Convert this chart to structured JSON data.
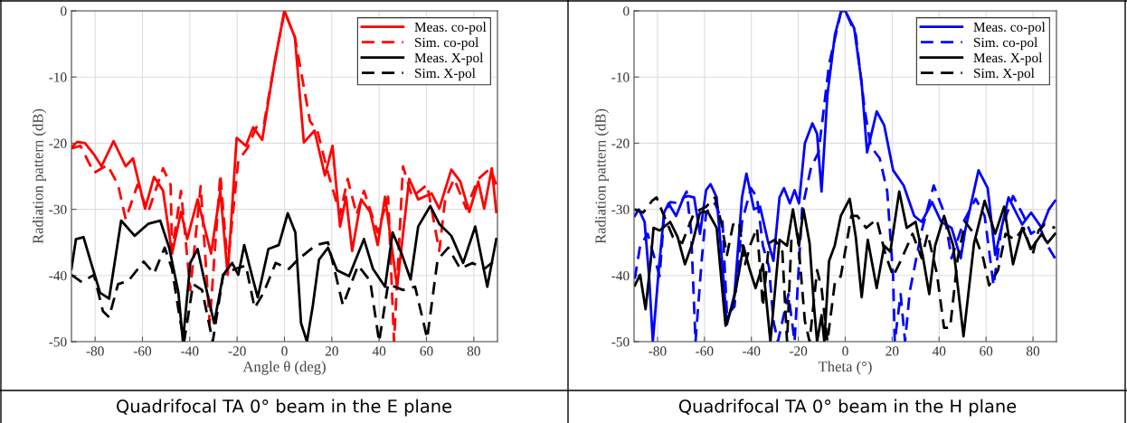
{
  "chart_data": [
    {
      "type": "line",
      "xlabel": "Angle θ (deg)",
      "ylabel": "Radiation pattern (dB)",
      "xlim": [
        -90,
        90
      ],
      "ylim": [
        -50,
        0
      ],
      "xticks": [
        -80,
        -60,
        -40,
        -20,
        0,
        20,
        40,
        60,
        80
      ],
      "yticks": [
        -50,
        -40,
        -30,
        -20,
        -10,
        0
      ],
      "grid": true,
      "legend": "top right",
      "annotations": [
        "Quadrifocal TA 0° beam in the E plane"
      ],
      "series": [
        {
          "name": "Meas. co-pol",
          "color": "#ff0000",
          "line_style": "solid",
          "x": [
            -90,
            -87.5,
            -84.3,
            -80.5,
            -77.3,
            -72.2,
            -67.1,
            -64,
            -58.9,
            -55.1,
            -51.3,
            -47.5,
            -43.7,
            -41.1,
            -36.7,
            -31,
            -27.1,
            -24,
            -20.2,
            -16.3,
            -13.2,
            -9.4,
            -4.3,
            0,
            4.4,
            8.2,
            12.7,
            17.1,
            20.3,
            23.5,
            26,
            28.6,
            32.4,
            36.2,
            39.4,
            42.5,
            47.6,
            52.7,
            56.5,
            62.2,
            65.4,
            70.5,
            74.3,
            78.1,
            81.9,
            84.4,
            87.6,
            89.5
          ],
          "values": [
            -20.6,
            -19.8,
            -20,
            -21.7,
            -23.5,
            -19.7,
            -23.5,
            -22.3,
            -29.9,
            -25.1,
            -27.2,
            -36.7,
            -30.4,
            -34.5,
            -28.5,
            -36.7,
            -27.2,
            -39.9,
            -19.2,
            -20.4,
            -17.6,
            -19.5,
            -8.1,
            0,
            -4,
            -19.9,
            -18.1,
            -24.9,
            -20.4,
            -32.6,
            -28.1,
            -36.3,
            -28.5,
            -30.4,
            -35.4,
            -28.1,
            -41.7,
            -25.4,
            -28.5,
            -27.6,
            -29.9,
            -24,
            -25.8,
            -30.4,
            -25.8,
            -29.9,
            -23.8,
            -30.4
          ]
        },
        {
          "name": "Sim. co-pol",
          "color": "#ff0000",
          "line_style": "dashed",
          "x": [
            -90,
            -86.2,
            -80.5,
            -74.8,
            -70.3,
            -67.1,
            -62.1,
            -57.6,
            -51.3,
            -48.1,
            -47.5,
            -43.7,
            -39.8,
            -35.4,
            -31.6,
            -27.1,
            -24,
            -19.5,
            -15.7,
            -11.9,
            -8.7,
            -4.3,
            0,
            4.4,
            10.8,
            13.9,
            18.4,
            23.5,
            26.7,
            30.5,
            33.6,
            39.4,
            43.8,
            46.3,
            50.1,
            53.9,
            60.3,
            65.4,
            67.9,
            71.7,
            76.8,
            81.9,
            87,
            89.5
          ],
          "values": [
            -20.8,
            -20.4,
            -24.5,
            -23.3,
            -26.3,
            -31.5,
            -26.3,
            -30.4,
            -23.8,
            -26.3,
            -36.3,
            -27.2,
            -42.2,
            -26.5,
            -47.2,
            -24.7,
            -38.5,
            -22.6,
            -20.8,
            -17.6,
            -17.2,
            -8.1,
            0,
            -4,
            -16.7,
            -18.1,
            -24.5,
            -30.8,
            -25.4,
            -30.8,
            -27.2,
            -33.5,
            -28.1,
            -50,
            -23.5,
            -28.1,
            -26.3,
            -36.3,
            -28.5,
            -25.4,
            -29.9,
            -25.4,
            -23.8,
            -26.3
          ]
        },
        {
          "name": "Meas. X-pol",
          "color": "#000000",
          "line_style": "solid",
          "x": [
            -90,
            -88.1,
            -84.9,
            -81.7,
            -77.9,
            -74.1,
            -69,
            -63.3,
            -57.6,
            -52.5,
            -48.7,
            -44.8,
            -42.9,
            -39.8,
            -36.7,
            -33.5,
            -29.7,
            -25.9,
            -22.1,
            -19.5,
            -17,
            -13.8,
            -11.3,
            -6.8,
            -2.4,
            1.4,
            4.6,
            7,
            9.5,
            12,
            14.6,
            18.4,
            22.2,
            27.3,
            33.6,
            37.4,
            42.5,
            45.7,
            49.5,
            53.3,
            56.5,
            61.6,
            65.4,
            70.5,
            75.5,
            80.6,
            85.7,
            89.5
          ],
          "values": [
            -39,
            -34.5,
            -34.2,
            -38.1,
            -42.6,
            -43.5,
            -31.7,
            -34,
            -32.2,
            -31.7,
            -35.8,
            -42.6,
            -50,
            -38.1,
            -36,
            -41.3,
            -47.2,
            -39.9,
            -38.1,
            -39.9,
            -35.4,
            -39.9,
            -43.3,
            -36,
            -35.4,
            -30.6,
            -33.5,
            -47.2,
            -50,
            -44.5,
            -37.6,
            -35.8,
            -39.2,
            -40.1,
            -34.5,
            -39,
            -41.7,
            -33.5,
            -36.7,
            -40.6,
            -32.6,
            -29.5,
            -32.2,
            -34,
            -38.1,
            -32.6,
            -41.7,
            -34.5
          ]
        },
        {
          "name": "Sim. X-pol",
          "color": "#000000",
          "line_style": "dashed",
          "x": [
            -90,
            -85.6,
            -80.5,
            -76.7,
            -74.1,
            -70.3,
            -65.9,
            -59.5,
            -55.1,
            -50.6,
            -47.5,
            -44.3,
            -42.4,
            -38.6,
            -34.8,
            -30.3,
            -25.9,
            -20.8,
            -16.3,
            -12.6,
            -8.8,
            -3.7,
            1.9,
            5.7,
            13.3,
            18.4,
            24.7,
            31.1,
            36.2,
            40,
            43.8,
            50.1,
            55.2,
            60.3,
            64.7,
            69.2,
            74.3,
            79.4,
            84.4,
            89.5
          ],
          "values": [
            -39.9,
            -41,
            -39.9,
            -45.4,
            -46.3,
            -41.3,
            -40.8,
            -37.9,
            -39.7,
            -35.8,
            -39,
            -46.3,
            -50,
            -41.3,
            -42.2,
            -50,
            -39.9,
            -39,
            -38.5,
            -44.9,
            -42.6,
            -38.1,
            -39,
            -37.6,
            -35.4,
            -35,
            -44.5,
            -38.5,
            -40.8,
            -50,
            -41.3,
            -42.2,
            -41.7,
            -49.5,
            -37.6,
            -35.8,
            -39,
            -38.1,
            -39,
            -37.6
          ]
        }
      ]
    },
    {
      "type": "line",
      "xlabel": "Theta (°)",
      "ylabel": "Radiation pattern (dB)",
      "xlim": [
        -90,
        90
      ],
      "ylim": [
        -50,
        0
      ],
      "xticks": [
        -80,
        -60,
        -40,
        -20,
        0,
        20,
        40,
        60,
        80
      ],
      "yticks": [
        -50,
        -40,
        -30,
        -20,
        -10,
        0
      ],
      "grid": true,
      "legend": "top right",
      "annotations": [
        "Quadrifocal TA 0° beam in the H plane"
      ],
      "series": [
        {
          "name": "Meas. co-pol",
          "color": "#0000ff",
          "line_style": "solid",
          "x": [
            -89.7,
            -88,
            -85.5,
            -83.6,
            -82,
            -79.7,
            -77.2,
            -75.3,
            -72.1,
            -68.9,
            -67,
            -64.4,
            -61.9,
            -59.3,
            -57.4,
            -54.8,
            -52.3,
            -50.4,
            -47.2,
            -44,
            -42.1,
            -38.9,
            -36.3,
            -33.1,
            -30.6,
            -28,
            -26.1,
            -23.6,
            -21.6,
            -19.7,
            -17.2,
            -14,
            -12,
            -10.1,
            -7.6,
            -4.4,
            -1.8,
            0,
            3.8,
            7,
            9.3,
            13.4,
            16.6,
            20.4,
            24.9,
            29.4,
            32.6,
            37,
            40.9,
            45.3,
            49.2,
            51.1,
            56.8,
            60.7,
            63.9,
            69.6,
            72.8,
            75.4,
            79.2,
            83.7,
            86.8,
            89.4
          ],
          "values": [
            -31,
            -30,
            -31.9,
            -40.1,
            -50,
            -40.1,
            -30.5,
            -29.1,
            -31,
            -28.2,
            -28,
            -28.2,
            -33.7,
            -27.1,
            -26.2,
            -28.2,
            -38.7,
            -47.4,
            -42.8,
            -28.2,
            -24.6,
            -30,
            -29.6,
            -34.6,
            -37.8,
            -28.2,
            -26.8,
            -29.1,
            -27.1,
            -29.1,
            -20,
            -17,
            -18.6,
            -27.3,
            -12.7,
            -3.6,
            -0.1,
            0,
            -2.6,
            -10.9,
            -21.4,
            -15.2,
            -17.3,
            -24.1,
            -26.4,
            -31,
            -31.9,
            -28.9,
            -31.9,
            -32.8,
            -37.4,
            -33.2,
            -24.1,
            -26.8,
            -36.9,
            -28.2,
            -30.5,
            -32.3,
            -30.5,
            -32.8,
            -30,
            -28.7
          ]
        },
        {
          "name": "Sim. co-pol",
          "color": "#0000ff",
          "line_style": "dashed",
          "x": [
            -89.7,
            -87.4,
            -84.2,
            -79.1,
            -77.2,
            -74.6,
            -70.2,
            -67.6,
            -65.7,
            -63.8,
            -61.2,
            -59.3,
            -55.5,
            -52.3,
            -50.4,
            -47.2,
            -44,
            -40.2,
            -37.6,
            -35.1,
            -32.5,
            -30.6,
            -28.7,
            -24.2,
            -21.6,
            -18.4,
            -14.6,
            -11.4,
            -9.5,
            -6.9,
            -1.8,
            0,
            4.5,
            8.3,
            10.9,
            14.7,
            17.9,
            20.4,
            21.1,
            23.6,
            25.5,
            27.5,
            32.6,
            37.7,
            42.1,
            45.3,
            50.4,
            55.6,
            59.4,
            63.2,
            66.4,
            71.5,
            76,
            79.2,
            83,
            86.2,
            89.4
          ],
          "values": [
            -40.5,
            -35.5,
            -33.7,
            -40.1,
            -31,
            -28.9,
            -29.1,
            -27.3,
            -33.2,
            -50,
            -37.8,
            -30.5,
            -29.1,
            -31.9,
            -46,
            -44.7,
            -31.9,
            -26.8,
            -28.2,
            -35.5,
            -38.7,
            -46.9,
            -50,
            -42.8,
            -50,
            -30,
            -23.7,
            -21.4,
            -15.9,
            -8.1,
            -0.1,
            0,
            -3.6,
            -15,
            -20.5,
            -22.3,
            -27.3,
            -40.1,
            -50,
            -42.8,
            -50,
            -42.4,
            -33.2,
            -26.4,
            -30.5,
            -37.4,
            -31.9,
            -28.4,
            -31,
            -41.5,
            -33.2,
            -28,
            -31,
            -33.7,
            -32.8,
            -35.5,
            -37.4
          ]
        },
        {
          "name": "Meas. X-pol",
          "color": "#000000",
          "line_style": "solid",
          "x": [
            -89.7,
            -87.4,
            -85.1,
            -82.9,
            -81.7,
            -79.1,
            -74.6,
            -71.4,
            -68.3,
            -65.1,
            -61.9,
            -58.7,
            -54.8,
            -51,
            -47.8,
            -45.3,
            -43.4,
            -40.8,
            -38.2,
            -35.1,
            -31.9,
            -28,
            -24.8,
            -22.3,
            -19.7,
            -17.8,
            -15.2,
            -13.3,
            -12,
            -10.1,
            -8.9,
            -6.9,
            -4.5,
            -1.9,
            1.9,
            4.5,
            7,
            9.6,
            13.4,
            16.6,
            19.2,
            23,
            26.2,
            30,
            33.2,
            35.8,
            38.3,
            42.1,
            46,
            50.4,
            54.9,
            59.4,
            63.9,
            67.7,
            71.5,
            75.4,
            79.2,
            83.7,
            86.2,
            89.4
          ],
          "values": [
            -41.5,
            -39.9,
            -45.1,
            -37.8,
            -32.8,
            -33.2,
            -31.9,
            -34.2,
            -38.3,
            -35.1,
            -30.5,
            -30.3,
            -32.8,
            -47.6,
            -44.2,
            -39.6,
            -35.5,
            -39,
            -41.9,
            -38.3,
            -50,
            -34.6,
            -35.5,
            -30,
            -35.5,
            -30,
            -35.1,
            -44.7,
            -50,
            -46,
            -50,
            -37.8,
            -35.5,
            -31,
            -28.4,
            -34.2,
            -43.3,
            -34.6,
            -41.9,
            -35.5,
            -36.4,
            -27.3,
            -32.8,
            -31.9,
            -37.4,
            -42.8,
            -35.5,
            -31,
            -35.5,
            -49.2,
            -35.1,
            -28.7,
            -33.7,
            -29.6,
            -38.3,
            -32.8,
            -36,
            -33.7,
            -35.1,
            -33.7
          ]
        },
        {
          "name": "Sim. X-pol",
          "color": "#000000",
          "line_style": "dashed",
          "x": [
            -89.7,
            -86.1,
            -82.3,
            -80.4,
            -77.8,
            -73.4,
            -69.5,
            -64.4,
            -59.3,
            -55.5,
            -52.9,
            -50.4,
            -47.8,
            -45.3,
            -42.7,
            -40.2,
            -37.6,
            -35.1,
            -32.5,
            -30,
            -26.8,
            -24.8,
            -22.9,
            -20.3,
            -17.2,
            -15.2,
            -12,
            -10.1,
            -7.6,
            -4.4,
            -1.9,
            2.6,
            5.1,
            8.9,
            13.4,
            17.2,
            20.4,
            23.6,
            28.7,
            32.6,
            35.1,
            39,
            42.1,
            44.7,
            47.9,
            51.1,
            54.9,
            58.8,
            61.3,
            65.1,
            68.3,
            72.2,
            76,
            79.8,
            82.4,
            84.9,
            89.4
          ],
          "values": [
            -30,
            -30.5,
            -28.7,
            -28.2,
            -30.5,
            -34.2,
            -35.1,
            -30.5,
            -29.6,
            -28.2,
            -31.9,
            -36.9,
            -32.3,
            -31.9,
            -38.3,
            -35.1,
            -32.8,
            -44.7,
            -35.1,
            -34.6,
            -36.4,
            -50,
            -34.2,
            -33.7,
            -46.9,
            -50,
            -39.2,
            -41.9,
            -50,
            -41,
            -40.1,
            -31,
            -31,
            -32.8,
            -31.5,
            -36.9,
            -40.1,
            -37.8,
            -33.7,
            -37.4,
            -33.7,
            -39.6,
            -47.9,
            -47.9,
            -37.4,
            -31.9,
            -33.7,
            -37.4,
            -41.5,
            -39.2,
            -33.7,
            -34.6,
            -32.8,
            -36.9,
            -33.2,
            -32.3,
            -32.8
          ]
        }
      ]
    }
  ]
}
